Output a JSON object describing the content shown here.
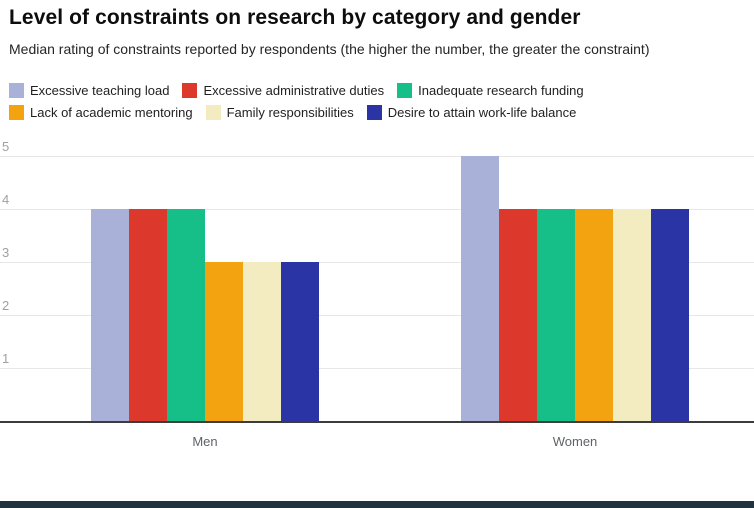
{
  "page": {
    "title": "Level of constraints on research by category and gender",
    "subtitle": "Median rating of constraints reported by respondents (the higher the number, the greater the constraint)"
  },
  "chart_data": {
    "type": "bar",
    "title": "Level of constraints on research by category and gender",
    "subtitle": "Median rating of constraints reported by respondents (the higher the number, the greater the constraint)",
    "categories": [
      "Men",
      "Women"
    ],
    "series": [
      {
        "name": "Excessive teaching load",
        "color": "#a9b1d9",
        "values": [
          4,
          5
        ]
      },
      {
        "name": "Excessive administrative duties",
        "color": "#dc392c",
        "values": [
          4,
          4
        ]
      },
      {
        "name": "Inadequate research funding",
        "color": "#15bf87",
        "values": [
          4,
          4
        ]
      },
      {
        "name": "Lack of academic mentoring",
        "color": "#f2a30f",
        "values": [
          3,
          4
        ]
      },
      {
        "name": "Family responsibilities",
        "color": "#f3ecc0",
        "values": [
          3,
          4
        ]
      },
      {
        "name": "Desire to attain work-life balance",
        "color": "#2a34a4",
        "values": [
          3,
          4
        ]
      }
    ],
    "ylim": [
      0,
      5
    ],
    "yticks": [
      1,
      2,
      3,
      4,
      5
    ],
    "grid": true,
    "legend_position": "top",
    "xlabel": "",
    "ylabel": ""
  },
  "colors": {
    "footer_accent": "#20333e",
    "gridline": "#e7e7e7",
    "axis_line": "#3c3c3c",
    "tick_label": "#a0a0a0",
    "category_label": "#5f6368"
  }
}
